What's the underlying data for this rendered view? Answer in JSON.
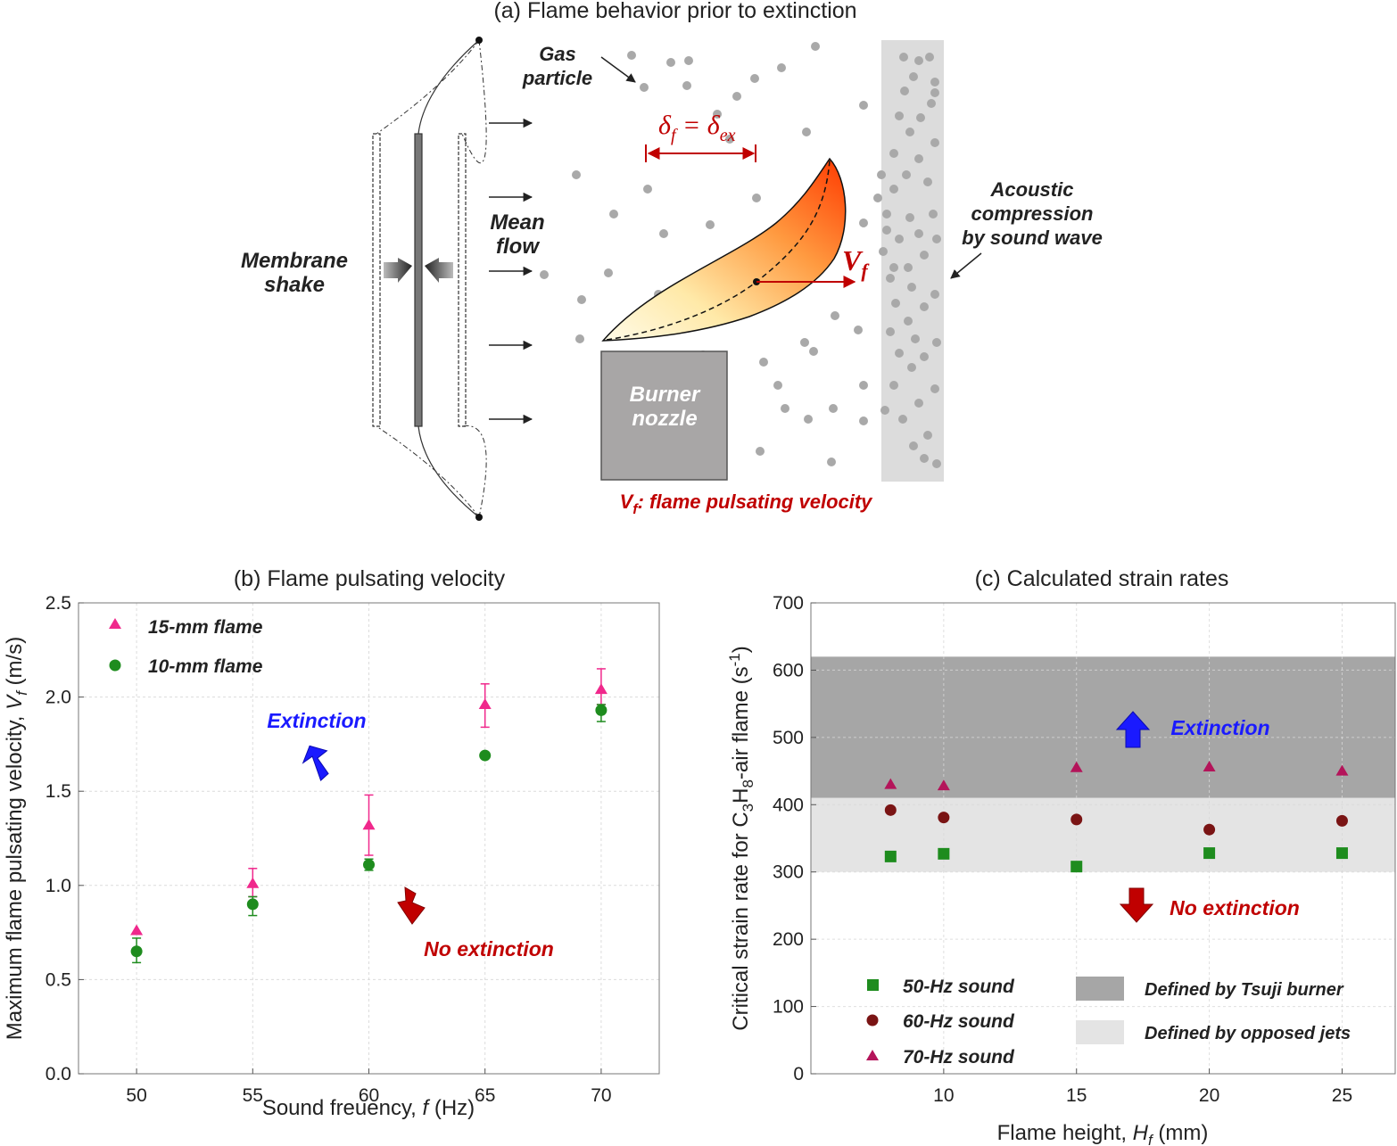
{
  "panel_a": {
    "title": "(a) Flame behavior prior to extinction",
    "membrane_label": [
      "Membrane",
      "shake"
    ],
    "mean_flow_label": [
      "Mean",
      "flow"
    ],
    "gas_particle_label": [
      "Gas",
      "particle"
    ],
    "delta_left": "δ",
    "delta_left_sub": "f",
    "delta_eq": " = δ",
    "delta_right_sub": "ex",
    "vf_symbol": "V",
    "vf_sub": "f",
    "acoustic_label": [
      "Acoustic",
      "compression",
      "by sound wave"
    ],
    "nozzle_label": [
      "Burner",
      "nozzle"
    ],
    "vf_caption_sym": "V",
    "vf_caption_sub": "f",
    "vf_caption_text": ": flame pulsating velocity",
    "colors": {
      "red": "#c00000",
      "flame_hot": "#ff4500",
      "flame_cool": "#fff8d0",
      "nozzle": "#a8a6a6",
      "particle": "#a9a9a9"
    }
  },
  "chart_data": [
    {
      "type": "scatter",
      "title": "(b) Flame pulsating velocity",
      "xlabel_main": "Sound freuency, ",
      "xlabel_var": "f",
      "xlabel_unit": " (Hz)",
      "ylabel_main": "Maximum flame pulsating velocity, ",
      "ylabel_var": "V",
      "ylabel_sub": "f",
      "ylabel_unit": " (m/s)",
      "xlim": [
        47.5,
        72.5
      ],
      "ylim": [
        0,
        2.5
      ],
      "xticks": [
        50,
        55,
        60,
        65,
        70
      ],
      "yticks": [
        0.0,
        0.5,
        1.0,
        1.5,
        2.0,
        2.5
      ],
      "ytick_labels": [
        "0.0",
        "0.5",
        "1.0",
        "1.5",
        "2.0",
        "2.5"
      ],
      "series": [
        {
          "name": "15-mm flame",
          "marker": "triangle",
          "color": "#f0288c",
          "x": [
            50,
            55,
            60,
            65,
            70
          ],
          "y": [
            0.76,
            1.01,
            1.32,
            1.96,
            2.04
          ],
          "err_up": [
            0.0,
            0.08,
            0.16,
            0.11,
            0.11
          ],
          "err_down": [
            0.0,
            0.07,
            0.16,
            0.12,
            0.08
          ]
        },
        {
          "name": "10-mm flame",
          "marker": "circle",
          "color": "#1e8c1e",
          "x": [
            50,
            55,
            60,
            65,
            70
          ],
          "y": [
            0.65,
            0.9,
            1.11,
            1.69,
            1.93
          ],
          "err_up": [
            0.07,
            0.04,
            0.03,
            0.0,
            0.03
          ],
          "err_down": [
            0.06,
            0.06,
            0.03,
            0.0,
            0.06
          ]
        }
      ],
      "annotations": {
        "extinction": "Extinction",
        "no_extinction": "No extinction"
      }
    },
    {
      "type": "scatter",
      "title": "(c) Calculated strain rates",
      "xlabel_main": "Flame height, ",
      "xlabel_var": "H",
      "xlabel_sub": "f",
      "xlabel_unit": " (mm)",
      "ylabel_pre": "Critical strain rate for C",
      "ylabel_s1": "3",
      "ylabel_mid": "H",
      "ylabel_s2": "8",
      "ylabel_post": "-air flame (s",
      "ylabel_sup": "-1",
      "ylabel_end": ")",
      "xlim": [
        5,
        27
      ],
      "ylim": [
        0,
        700
      ],
      "xticks": [
        10,
        15,
        20,
        25
      ],
      "yticks": [
        0,
        100,
        200,
        300,
        400,
        500,
        600,
        700
      ],
      "bands": [
        {
          "name": "Defined by Tsuji burner",
          "from": 410,
          "to": 620,
          "color": "#a6a6a6"
        },
        {
          "name": "Defined by opposed jets",
          "from": 300,
          "to": 410,
          "color": "#e4e4e4"
        }
      ],
      "series": [
        {
          "name": "50-Hz sound",
          "marker": "square",
          "color": "#1e8c1e",
          "x": [
            8,
            10,
            15,
            20,
            25
          ],
          "y": [
            323,
            327,
            308,
            328,
            328
          ]
        },
        {
          "name": "60-Hz sound",
          "marker": "circle",
          "color": "#7a1414",
          "x": [
            8,
            10,
            15,
            20,
            25
          ],
          "y": [
            392,
            381,
            378,
            363,
            376
          ]
        },
        {
          "name": "70-Hz sound",
          "marker": "triangle",
          "color": "#b4145a",
          "x": [
            8,
            10,
            15,
            20,
            25
          ],
          "y": [
            430,
            428,
            455,
            456,
            450
          ]
        }
      ],
      "annotations": {
        "extinction": "Extinction",
        "no_extinction": "No extinction"
      }
    }
  ]
}
